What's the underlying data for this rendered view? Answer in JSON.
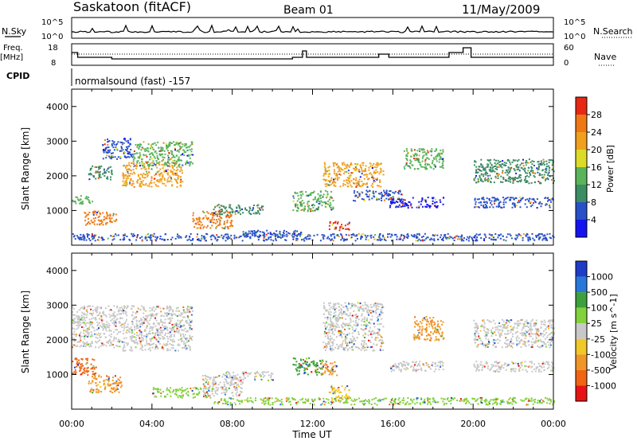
{
  "header": {
    "title": "Saskatoon (fitACF)",
    "beam": "Beam 01",
    "date": "11/May/2009"
  },
  "params": {
    "nsky_label": "N.Sky",
    "nsky_ticks": [
      "10^5",
      "10^0"
    ],
    "nsearch_label": "N.Search",
    "nsearch_ticks": [
      "10^5",
      "10^0"
    ],
    "freq_label": "Freq.",
    "freq_unit": "[MHz]",
    "freq_ticks": [
      "18",
      "8"
    ],
    "nave_label": "Nave",
    "nave_ticks": [
      "60",
      "0"
    ],
    "cpid_label": "CPID",
    "cpid_text": "normalsound (fast) -157"
  },
  "chart_data": [
    {
      "type": "heatmap",
      "name": "power-panel",
      "ylabel": "Slant Range [km]",
      "yticks": [
        "1000",
        "2000",
        "3000",
        "4000"
      ],
      "ylim": [
        0,
        4500
      ],
      "xlim": [
        0,
        24
      ],
      "colorbar": {
        "label": "Power [dB]",
        "ticks": [
          "4",
          "8",
          "12",
          "16",
          "20",
          "24",
          "28"
        ],
        "colors": [
          "#1414f0",
          "#2850c8",
          "#3c8c64",
          "#5ab45a",
          "#dcdc28",
          "#f0a01e",
          "#f07814",
          "#e62814"
        ]
      },
      "blobs": [
        {
          "t0": 0.0,
          "t1": 1.0,
          "r0": 1200,
          "r1": 1450,
          "c": "#5ab45a"
        },
        {
          "t0": 0.6,
          "t1": 2.2,
          "r0": 600,
          "r1": 1000,
          "c": "#f07814"
        },
        {
          "t0": 0.8,
          "t1": 2.0,
          "r0": 1900,
          "r1": 2300,
          "c": "#3c8c64"
        },
        {
          "t0": 1.5,
          "t1": 3.0,
          "r0": 2500,
          "r1": 3100,
          "c": "#2850c8"
        },
        {
          "t0": 2.5,
          "t1": 5.5,
          "r0": 1700,
          "r1": 2400,
          "c": "#f0a01e"
        },
        {
          "t0": 3.0,
          "t1": 6.0,
          "r0": 2300,
          "r1": 3000,
          "c": "#5ab45a"
        },
        {
          "t0": 6.0,
          "t1": 8.0,
          "r0": 500,
          "r1": 1000,
          "c": "#f07814"
        },
        {
          "t0": 7.0,
          "t1": 9.5,
          "r0": 900,
          "r1": 1200,
          "c": "#3c8c64"
        },
        {
          "t0": 8.5,
          "t1": 11.5,
          "r0": 250,
          "r1": 450,
          "c": "#2850c8"
        },
        {
          "t0": 11.0,
          "t1": 13.0,
          "r0": 1000,
          "r1": 1600,
          "c": "#5ab45a"
        },
        {
          "t0": 12.8,
          "t1": 13.8,
          "r0": 450,
          "r1": 700,
          "c": "#e62814"
        },
        {
          "t0": 12.5,
          "t1": 15.5,
          "r0": 1700,
          "r1": 2400,
          "c": "#f0a01e"
        },
        {
          "t0": 14.0,
          "t1": 16.5,
          "r0": 1300,
          "r1": 1600,
          "c": "#2850c8"
        },
        {
          "t0": 15.8,
          "t1": 18.5,
          "r0": 1100,
          "r1": 1400,
          "c": "#1414f0"
        },
        {
          "t0": 16.5,
          "t1": 18.5,
          "r0": 2200,
          "r1": 2800,
          "c": "#5ab45a"
        },
        {
          "t0": 20.0,
          "t1": 24.0,
          "r0": 1100,
          "r1": 1400,
          "c": "#2850c8"
        },
        {
          "t0": 20.0,
          "t1": 24.0,
          "r0": 1800,
          "r1": 2500,
          "c": "#3c8c64"
        },
        {
          "t0": 0.0,
          "t1": 24.0,
          "r0": 150,
          "r1": 350,
          "c": "#2850c8"
        }
      ]
    },
    {
      "type": "heatmap",
      "name": "velocity-panel",
      "ylabel": "Slant Range [km]",
      "xlabel": "Time UT",
      "yticks": [
        "1000",
        "2000",
        "3000",
        "4000"
      ],
      "xticks": [
        "00:00",
        "04:00",
        "08:00",
        "12:00",
        "16:00",
        "20:00",
        "00:00"
      ],
      "ylim": [
        0,
        4500
      ],
      "xlim": [
        0,
        24
      ],
      "colorbar": {
        "label": "Velocity [m s^-1]",
        "ticks": [
          "1000",
          "500",
          "100",
          "25",
          "-25",
          "-100",
          "-500",
          "-1000"
        ],
        "colors": [
          "#1e3cc8",
          "#2878dc",
          "#3ca03c",
          "#82d23c",
          "#c8c8c8",
          "#f0c828",
          "#f09628",
          "#f06414",
          "#e61414"
        ]
      },
      "blobs": [
        {
          "t0": 0.0,
          "t1": 1.2,
          "r0": 1000,
          "r1": 1500,
          "c": "#f06414"
        },
        {
          "t0": 0.8,
          "t1": 2.5,
          "r0": 500,
          "r1": 1000,
          "c": "#f09628"
        },
        {
          "t0": 0.0,
          "t1": 2.5,
          "r0": 1800,
          "r1": 3000,
          "c": "#c8c8c8"
        },
        {
          "t0": 2.5,
          "t1": 6.0,
          "r0": 1700,
          "r1": 3000,
          "c": "#c8c8c8"
        },
        {
          "t0": 4.0,
          "t1": 7.0,
          "r0": 350,
          "r1": 650,
          "c": "#82d23c"
        },
        {
          "t0": 6.5,
          "t1": 8.5,
          "r0": 400,
          "r1": 1000,
          "c": "#c8c8c8"
        },
        {
          "t0": 7.5,
          "t1": 10.0,
          "r0": 850,
          "r1": 1100,
          "c": "#c8c8c8"
        },
        {
          "t0": 7.0,
          "t1": 24.0,
          "r0": 150,
          "r1": 350,
          "c": "#82d23c"
        },
        {
          "t0": 11.0,
          "t1": 12.5,
          "r0": 1000,
          "r1": 1500,
          "c": "#3ca03c"
        },
        {
          "t0": 12.3,
          "t1": 13.2,
          "r0": 1000,
          "r1": 1400,
          "c": "#f09628"
        },
        {
          "t0": 12.8,
          "t1": 13.8,
          "r0": 300,
          "r1": 700,
          "c": "#f0c828"
        },
        {
          "t0": 12.5,
          "t1": 15.5,
          "r0": 1700,
          "r1": 3100,
          "c": "#c8c8c8"
        },
        {
          "t0": 15.8,
          "t1": 18.5,
          "r0": 1100,
          "r1": 1400,
          "c": "#c8c8c8"
        },
        {
          "t0": 17.0,
          "t1": 18.5,
          "r0": 2000,
          "r1": 2700,
          "c": "#f09628"
        },
        {
          "t0": 20.0,
          "t1": 24.0,
          "r0": 1100,
          "r1": 1400,
          "c": "#c8c8c8"
        },
        {
          "t0": 20.0,
          "t1": 24.0,
          "r0": 1800,
          "r1": 2600,
          "c": "#c8c8c8"
        }
      ]
    }
  ]
}
